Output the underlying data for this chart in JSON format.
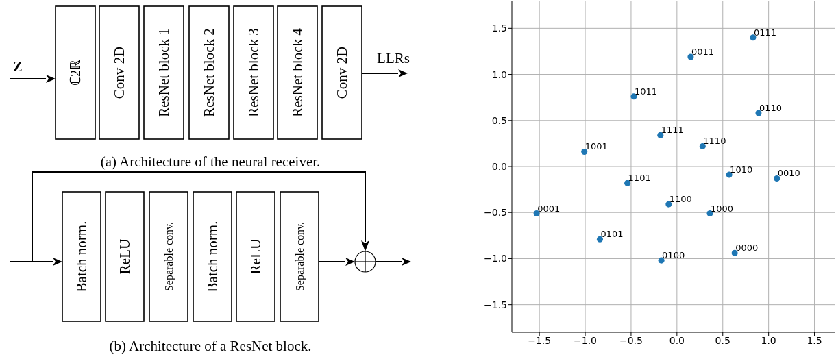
{
  "chart_data": [
    {
      "type": "other",
      "annotations": [
        "Z",
        "ℂ2ℝ",
        "Conv 2D",
        "ResNet block 1",
        "ResNet block 2",
        "ResNet block 3",
        "ResNet block 4",
        "Conv 2D",
        "LLRs",
        "(a) Architecture of the neural receiver.",
        "Batch norm.",
        "ReLU",
        "Separable conv.",
        "Batch norm.",
        "ReLU",
        "Separable conv.",
        "(b) Architecture of a ResNet block."
      ]
    },
    {
      "type": "scatter",
      "color": "#1f77b4",
      "marker": "circle",
      "grid": true,
      "x": [
        0.83,
        0.15,
        -0.47,
        0.89,
        -0.18,
        0.28,
        -1.01,
        0.57,
        1.09,
        -0.54,
        -0.09,
        -1.53,
        0.36,
        -0.84,
        0.63,
        -0.17
      ],
      "values": [
        1.4,
        1.19,
        0.76,
        0.58,
        0.34,
        0.22,
        0.16,
        -0.09,
        -0.13,
        -0.18,
        -0.41,
        -0.51,
        -0.51,
        -0.79,
        -0.94,
        -1.02
      ],
      "annotations": [
        {
          "text": "0111",
          "x": 0.83,
          "y": 1.4
        },
        {
          "text": "0011",
          "x": 0.15,
          "y": 1.19
        },
        {
          "text": "1011",
          "x": -0.47,
          "y": 0.76
        },
        {
          "text": "0110",
          "x": 0.89,
          "y": 0.58
        },
        {
          "text": "1111",
          "x": -0.18,
          "y": 0.34
        },
        {
          "text": "1110",
          "x": 0.28,
          "y": 0.22
        },
        {
          "text": "1001",
          "x": -1.01,
          "y": 0.16
        },
        {
          "text": "1010",
          "x": 0.57,
          "y": -0.09
        },
        {
          "text": "0010",
          "x": 1.09,
          "y": -0.13
        },
        {
          "text": "1101",
          "x": -0.54,
          "y": -0.18
        },
        {
          "text": "1100",
          "x": -0.09,
          "y": -0.41
        },
        {
          "text": "0001",
          "x": -1.53,
          "y": -0.51
        },
        {
          "text": "1000",
          "x": 0.36,
          "y": -0.51
        },
        {
          "text": "0101",
          "x": -0.84,
          "y": -0.79
        },
        {
          "text": "0000",
          "x": 0.63,
          "y": -0.94
        },
        {
          "text": "0100",
          "x": -0.17,
          "y": -1.02
        }
      ],
      "xlim": [
        -1.8,
        1.72
      ],
      "ylim": [
        -1.8,
        1.8
      ],
      "xticks": [
        {
          "value": -1.5,
          "label": "−1.5"
        },
        {
          "value": -1.0,
          "label": "−1.0"
        },
        {
          "value": -0.5,
          "label": "−0.5"
        },
        {
          "value": 0,
          "label": "0.0"
        },
        {
          "value": 0.5,
          "label": "0.5"
        },
        {
          "value": 1.0,
          "label": "1.0"
        },
        {
          "value": 1.5,
          "label": "1.5"
        }
      ],
      "yticks": [
        {
          "value": -1.5,
          "label": "−1.5"
        },
        {
          "value": -1.0,
          "label": "−1.0"
        },
        {
          "value": -0.5,
          "label": "−0.5"
        },
        {
          "value": 0,
          "label": "0.0"
        },
        {
          "value": 0.5,
          "label": "0.5"
        },
        {
          "value": 1.0,
          "label": "1.0"
        },
        {
          "value": 1.5,
          "label": "1.5"
        }
      ]
    }
  ]
}
